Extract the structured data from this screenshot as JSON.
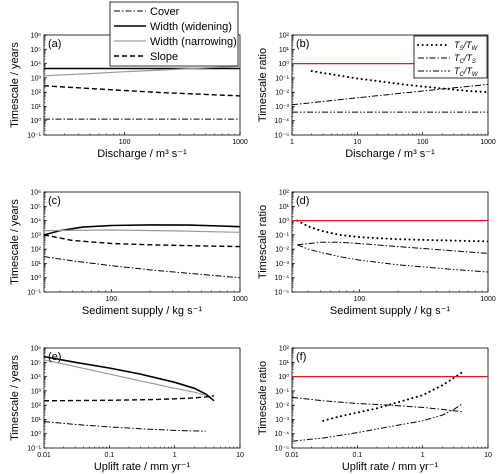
{
  "colors": {
    "reference_line": "#e8161d",
    "grey_series": "#9a9a9a",
    "black": "#000000"
  },
  "legend_left": [
    {
      "label": "Cover",
      "style": "dashdot"
    },
    {
      "label": "Width (widening)",
      "style": "solid-black"
    },
    {
      "label": "Width (narrowing)",
      "style": "solid-grey"
    },
    {
      "label": "Slope",
      "style": "dashed"
    }
  ],
  "legend_right": [
    {
      "main": "T",
      "sub1": "S",
      "mid": "/T",
      "sub2": "W",
      "style": "dotted"
    },
    {
      "main": "T",
      "sub1": "C",
      "mid": "/T",
      "sub2": "S",
      "style": "dashdot"
    },
    {
      "main": "T",
      "sub1": "C",
      "mid": "/T",
      "sub2": "W",
      "style": "dashdotdot"
    }
  ],
  "chart_data": [
    {
      "type": "line",
      "panel": "(a)",
      "xlabel": "Discharge / m³ s⁻¹",
      "ylabel": "Timescale / years",
      "xscale": "log",
      "yscale": "log",
      "xlim": [
        20,
        1000
      ],
      "ylim": [
        0.1,
        1000000
      ],
      "x_ticks": [
        "100",
        "1000"
      ],
      "y_ticks": [
        "10⁻¹",
        "10⁰",
        "10¹",
        "10²",
        "10³",
        "10⁴",
        "10⁵",
        "10⁶"
      ],
      "series": [
        {
          "name": "Cover",
          "x": [
            20,
            1000
          ],
          "y": [
            1.3,
            1.3
          ]
        },
        {
          "name": "Width (widening)",
          "x": [
            20,
            1000
          ],
          "y": [
            4500,
            4500
          ]
        },
        {
          "name": "Width (narrowing)",
          "x": [
            20,
            50,
            100,
            200,
            500,
            1000
          ],
          "y": [
            1400,
            2000,
            2700,
            3500,
            5000,
            6500
          ]
        },
        {
          "name": "Slope",
          "x": [
            20,
            50,
            100,
            200,
            500,
            1000
          ],
          "y": [
            280,
            180,
            130,
            95,
            70,
            55
          ]
        }
      ]
    },
    {
      "type": "line",
      "panel": "(b)",
      "xlabel": "Discharge / m³ s⁻¹",
      "ylabel": "Timescale ratio",
      "xscale": "log",
      "yscale": "log",
      "xlim": [
        1,
        1000
      ],
      "ylim": [
        1e-05,
        100
      ],
      "x_ticks": [
        "1",
        "10",
        "100",
        "1000"
      ],
      "y_ticks": [
        "10⁻⁵",
        "10⁻⁴",
        "10⁻³",
        "10⁻²",
        "10⁻¹",
        "10⁰",
        "10¹",
        "10²"
      ],
      "series": [
        {
          "name": "T_S/T_W",
          "x": [
            2,
            3,
            5,
            10,
            20,
            50,
            100,
            200,
            500,
            1000
          ],
          "y": [
            0.3,
            0.22,
            0.15,
            0.09,
            0.06,
            0.035,
            0.025,
            0.018,
            0.012,
            0.01
          ]
        },
        {
          "name": "T_C/T_S",
          "x": [
            1,
            10,
            100,
            1000
          ],
          "y": [
            0.0013,
            0.004,
            0.012,
            0.035
          ]
        },
        {
          "name": "T_C/T_W",
          "x": [
            1,
            1000
          ],
          "y": [
            0.0004,
            0.0004
          ]
        },
        {
          "name": "",
          "x": [
            1,
            1000
          ],
          "y": [
            1,
            1
          ]
        }
      ]
    },
    {
      "type": "line",
      "panel": "(c)",
      "xlabel": "Sediment supply / kg s⁻¹",
      "ylabel": "Timescale / years",
      "xscale": "log",
      "yscale": "log",
      "xlim": [
        30,
        1000
      ],
      "ylim": [
        0.1,
        1000000
      ],
      "x_ticks": [
        "100",
        "1000"
      ],
      "y_ticks": [
        "10⁻¹",
        "10⁰",
        "10¹",
        "10²",
        "10³",
        "10⁴",
        "10⁵",
        "10⁶"
      ],
      "series": [
        {
          "name": "Cover",
          "x": [
            30,
            50,
            100,
            200,
            500,
            1000
          ],
          "y": [
            30,
            15,
            7,
            3.5,
            1.7,
            1
          ]
        },
        {
          "name": "Width (widening)",
          "x": [
            30,
            40,
            60,
            100,
            200,
            400,
            700,
            1000
          ],
          "y": [
            1000,
            2000,
            3500,
            4500,
            5000,
            4800,
            4200,
            3700
          ]
        },
        {
          "name": "Width (narrowing)",
          "x": [
            30,
            100,
            300,
            1000
          ],
          "y": [
            2000,
            2200,
            1900,
            1500
          ]
        },
        {
          "name": "Slope",
          "x": [
            30,
            50,
            100,
            200,
            500,
            1000
          ],
          "y": [
            1000,
            400,
            250,
            200,
            170,
            150
          ]
        }
      ]
    },
    {
      "type": "line",
      "panel": "(d)",
      "xlabel": "Sediment supply / kg s⁻¹",
      "ylabel": "Timescale ratio",
      "xscale": "log",
      "yscale": "log",
      "xlim": [
        30,
        1000
      ],
      "ylim": [
        1e-05,
        100
      ],
      "x_ticks": [
        "100",
        "1000"
      ],
      "y_ticks": [
        "10⁻⁵",
        "10⁻⁴",
        "10⁻³",
        "10⁻²",
        "10⁻¹",
        "10⁰",
        "10¹",
        "10²"
      ],
      "series": [
        {
          "name": "T_S/T_W",
          "x": [
            33,
            40,
            50,
            70,
            100,
            200,
            500,
            1000
          ],
          "y": [
            1,
            0.4,
            0.2,
            0.1,
            0.07,
            0.05,
            0.04,
            0.035
          ]
        },
        {
          "name": "T_C/T_S",
          "x": [
            33,
            50,
            70,
            100,
            200,
            500,
            1000
          ],
          "y": [
            0.02,
            0.03,
            0.03,
            0.025,
            0.015,
            0.008,
            0.005
          ]
        },
        {
          "name": "T_C/T_W",
          "x": [
            33,
            40,
            50,
            70,
            100,
            200,
            500,
            1000
          ],
          "y": [
            0.02,
            0.01,
            0.006,
            0.003,
            0.0017,
            0.0008,
            0.0004,
            0.00025
          ]
        },
        {
          "name": "",
          "x": [
            30,
            1000
          ],
          "y": [
            1,
            1
          ]
        }
      ]
    },
    {
      "type": "line",
      "panel": "(e)",
      "xlabel": "Uplift rate / mm yr⁻¹",
      "ylabel": "Timescale / years",
      "xscale": "log",
      "yscale": "log",
      "xlim": [
        0.01,
        10
      ],
      "ylim": [
        0.1,
        1000000
      ],
      "x_ticks": [
        "0.01",
        "0.1",
        "1",
        "10"
      ],
      "y_ticks": [
        "10⁻¹",
        "10⁰",
        "10¹",
        "10²",
        "10³",
        "10⁴",
        "10⁵",
        "10⁶"
      ],
      "series": [
        {
          "name": "Cover",
          "x": [
            0.01,
            0.03,
            0.1,
            0.3,
            1,
            3
          ],
          "y": [
            7,
            4.5,
            3,
            2.2,
            1.7,
            1.5
          ]
        },
        {
          "name": "Width (widening)",
          "x": [
            0.01,
            0.03,
            0.1,
            0.3,
            1,
            2,
            3,
            4
          ],
          "y": [
            250000,
            100000,
            40000,
            15000,
            4000,
            1500,
            600,
            200
          ]
        },
        {
          "name": "Width (narrowing)",
          "x": [
            0.01,
            0.03,
            0.1,
            0.3,
            1,
            2,
            3
          ],
          "y": [
            150000,
            50000,
            15000,
            5000,
            1500,
            800,
            500
          ]
        },
        {
          "name": "Slope",
          "x": [
            0.01,
            0.1,
            0.5,
            1,
            2,
            3,
            4
          ],
          "y": [
            200,
            220,
            250,
            280,
            320,
            380,
            450
          ]
        }
      ]
    },
    {
      "type": "line",
      "panel": "(f)",
      "xlabel": "Uplift rate / mm yr⁻¹",
      "ylabel": "Timescale ratio",
      "xscale": "log",
      "yscale": "log",
      "xlim": [
        0.01,
        10
      ],
      "ylim": [
        1e-05,
        100
      ],
      "x_ticks": [
        "0.01",
        "0.1",
        "1",
        "10"
      ],
      "y_ticks": [
        "10⁻⁵",
        "10⁻⁴",
        "10⁻³",
        "10⁻²",
        "10⁻¹",
        "10⁰",
        "10¹",
        "10²"
      ],
      "series": [
        {
          "name": "T_S/T_W",
          "x": [
            0.03,
            0.05,
            0.1,
            0.2,
            0.5,
            1,
            2,
            3,
            4
          ],
          "y": [
            0.0008,
            0.0015,
            0.003,
            0.006,
            0.02,
            0.05,
            0.25,
            0.8,
            2
          ]
        },
        {
          "name": "T_C/T_S",
          "x": [
            0.01,
            0.03,
            0.1,
            0.3,
            1,
            2,
            3,
            4
          ],
          "y": [
            0.035,
            0.02,
            0.013,
            0.01,
            0.007,
            0.005,
            0.004,
            0.0035
          ]
        },
        {
          "name": "T_C/T_W",
          "x": [
            0.01,
            0.03,
            0.1,
            0.3,
            1,
            2,
            3,
            4
          ],
          "y": [
            3e-05,
            5e-05,
            0.00012,
            0.0003,
            0.0008,
            0.002,
            0.005,
            0.012
          ]
        },
        {
          "name": "",
          "x": [
            0.01,
            10
          ],
          "y": [
            1,
            1
          ]
        }
      ]
    }
  ]
}
